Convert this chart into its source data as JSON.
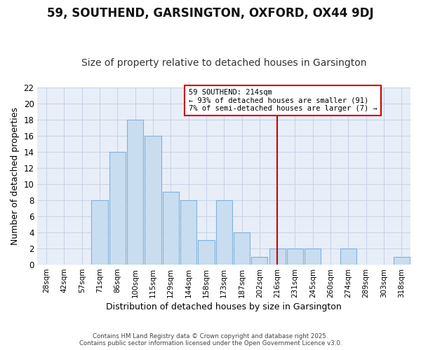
{
  "title": "59, SOUTHEND, GARSINGTON, OXFORD, OX44 9DJ",
  "subtitle": "Size of property relative to detached houses in Garsington",
  "xlabel": "Distribution of detached houses by size in Garsington",
  "ylabel": "Number of detached properties",
  "categories": [
    "28sqm",
    "42sqm",
    "57sqm",
    "71sqm",
    "86sqm",
    "100sqm",
    "115sqm",
    "129sqm",
    "144sqm",
    "158sqm",
    "173sqm",
    "187sqm",
    "202sqm",
    "216sqm",
    "231sqm",
    "245sqm",
    "260sqm",
    "274sqm",
    "289sqm",
    "303sqm",
    "318sqm"
  ],
  "values": [
    0,
    0,
    0,
    8,
    14,
    18,
    16,
    9,
    8,
    3,
    8,
    4,
    1,
    2,
    2,
    2,
    0,
    2,
    0,
    0,
    1
  ],
  "bar_color": "#c9ddf0",
  "bar_edge_color": "#7fb2d8",
  "vline_x": 13,
  "vline_color": "#cc0000",
  "annotation_title": "59 SOUTHEND: 214sqm",
  "annotation_line1": "← 93% of detached houses are smaller (91)",
  "annotation_line2": "7% of semi-detached houses are larger (7) →",
  "annotation_box_color": "#cc0000",
  "ylim": [
    0,
    22
  ],
  "yticks": [
    0,
    2,
    4,
    6,
    8,
    10,
    12,
    14,
    16,
    18,
    20,
    22
  ],
  "background_color": "#ffffff",
  "plot_bg_color": "#e8eef8",
  "grid_color": "#c8d4e8",
  "title_fontsize": 12,
  "subtitle_fontsize": 10,
  "xlabel_fontsize": 9,
  "ylabel_fontsize": 9,
  "footnote": "Contains HM Land Registry data © Crown copyright and database right 2025.\nContains public sector information licensed under the Open Government Licence v3.0."
}
